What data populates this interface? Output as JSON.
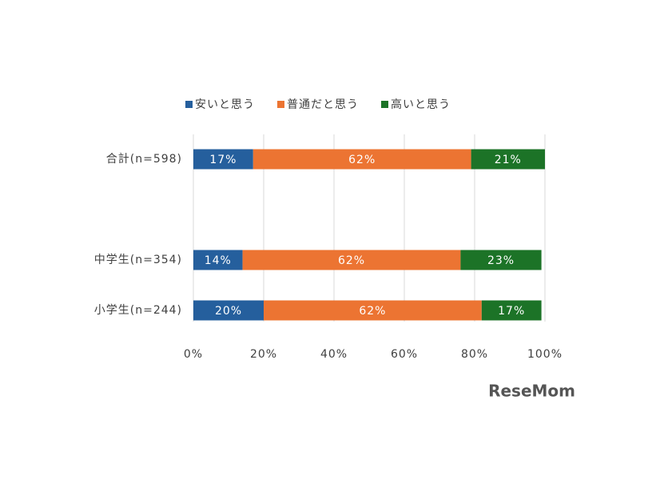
{
  "chart_data": {
    "type": "stacked-bar-horizontal",
    "categories": [
      "合計(n=598)",
      null,
      "中学生(n=354)",
      "小学生(n=244)"
    ],
    "series": [
      {
        "name": "安いと思う",
        "color": "#255f9d",
        "values": [
          17,
          null,
          14,
          20
        ],
        "value_labels": [
          "17%",
          null,
          "14%",
          "20%"
        ]
      },
      {
        "name": "普通だと思う",
        "color": "#ec7432",
        "values": [
          62,
          null,
          62,
          62
        ],
        "value_labels": [
          "62%",
          null,
          "62%",
          "62%"
        ]
      },
      {
        "name": "高いと思う",
        "color": "#1c7327",
        "values": [
          21,
          null,
          23,
          17
        ],
        "value_labels": [
          "21%",
          null,
          "23%",
          "17%"
        ]
      }
    ],
    "xlim": [
      0,
      100
    ],
    "xticks": [
      {
        "value": 0,
        "label": "0%"
      },
      {
        "value": 20,
        "label": "20%"
      },
      {
        "value": 40,
        "label": "40%"
      },
      {
        "value": 60,
        "label": "60%"
      },
      {
        "value": 80,
        "label": "80%"
      },
      {
        "value": 100,
        "label": "100%"
      }
    ],
    "grid": true,
    "legend": "top",
    "watermark": "ReseMom"
  }
}
